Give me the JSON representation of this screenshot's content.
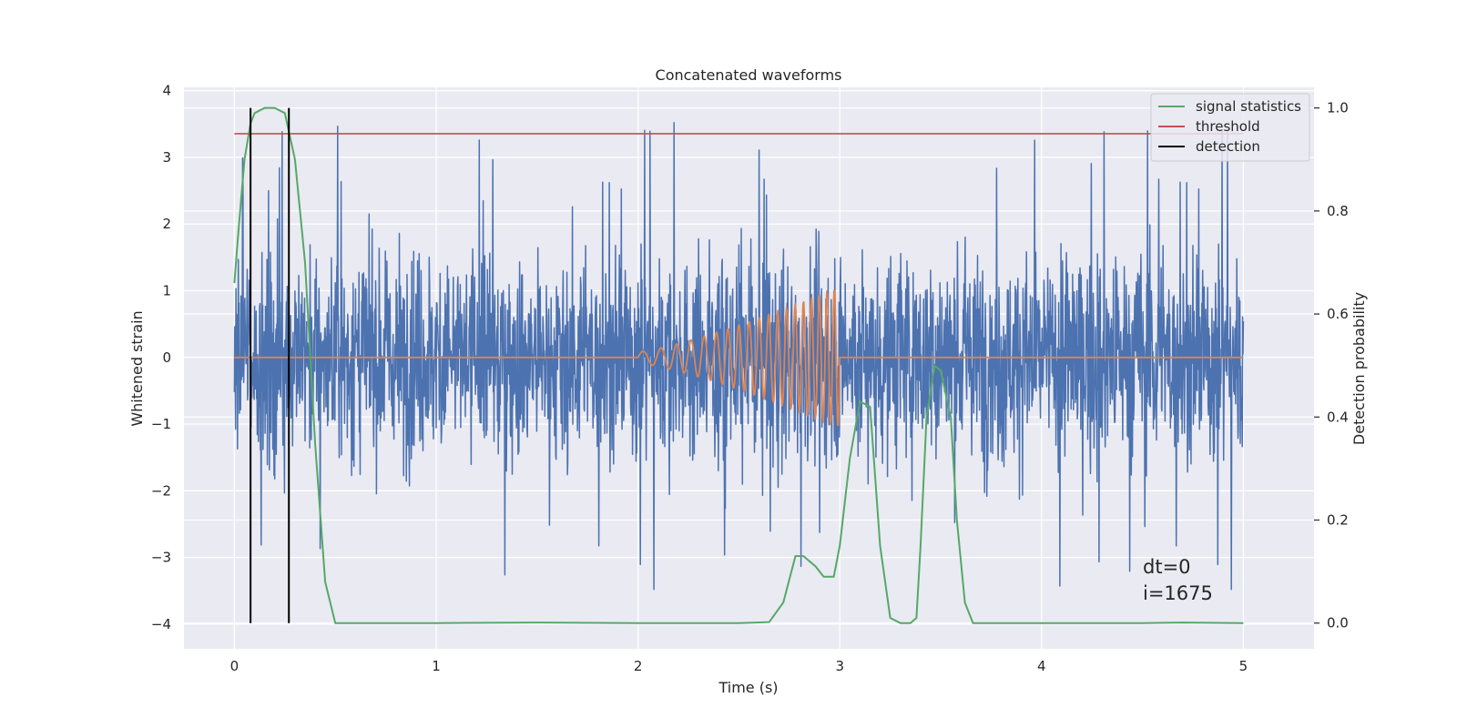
{
  "chart_data": {
    "type": "line",
    "title": "Concatenated waveforms",
    "xlabel": "Time (s)",
    "ylabel": "Whitened strain",
    "ylabel_right": "Detection probability",
    "xlim": [
      -0.25,
      5.35
    ],
    "ylim": [
      -4.37,
      4.05
    ],
    "ylim_right": [
      -0.05,
      1.04
    ],
    "x_ticks": [
      "0",
      "1",
      "2",
      "3",
      "4",
      "5"
    ],
    "x_tick_values": [
      0,
      1,
      2,
      3,
      4,
      5
    ],
    "y_ticks": [
      "4",
      "3",
      "2",
      "1",
      "0",
      "−1",
      "−2",
      "−3",
      "−4"
    ],
    "y_tick_values": [
      4,
      3,
      2,
      1,
      0,
      -1,
      -2,
      -3,
      -4
    ],
    "y_right_ticks": [
      "1.0",
      "0.8",
      "0.6",
      "0.4",
      "0.2",
      "0.0"
    ],
    "y_right_tick_values": [
      1.0,
      0.8,
      0.6,
      0.4,
      0.2,
      0.0
    ],
    "grid": true,
    "legend_position": "top-right",
    "series": [
      {
        "name": "signal statistics",
        "axis": "right",
        "color": "#55a868",
        "x": [
          0,
          0.02,
          0.05,
          0.08,
          0.1,
          0.15,
          0.2,
          0.25,
          0.3,
          0.35,
          0.4,
          0.45,
          0.5,
          0.55,
          0.6,
          1.0,
          1.5,
          2.0,
          2.5,
          2.65,
          2.72,
          2.78,
          2.82,
          2.88,
          2.92,
          2.97,
          3.0,
          3.05,
          3.1,
          3.15,
          3.2,
          3.25,
          3.3,
          3.35,
          3.38,
          3.4,
          3.43,
          3.47,
          3.5,
          3.55,
          3.58,
          3.62,
          3.66,
          3.72,
          4.0,
          4.5,
          4.7,
          5.0
        ],
        "y": [
          0.66,
          0.76,
          0.9,
          0.97,
          0.99,
          1.0,
          1.0,
          0.99,
          0.9,
          0.7,
          0.35,
          0.08,
          0.0,
          0.0,
          0.0,
          0.0,
          0.001,
          0.0,
          0.0,
          0.002,
          0.04,
          0.13,
          0.13,
          0.11,
          0.09,
          0.09,
          0.15,
          0.32,
          0.43,
          0.42,
          0.15,
          0.01,
          0.0,
          0.0,
          0.01,
          0.15,
          0.4,
          0.5,
          0.49,
          0.4,
          0.2,
          0.04,
          0.0,
          0.0,
          0.0,
          0.0,
          0.001,
          0.0
        ]
      },
      {
        "name": "threshold",
        "axis": "right",
        "color": "#c44e52",
        "x": [
          0,
          5
        ],
        "y": [
          0.95,
          0.95
        ]
      },
      {
        "name": "detection",
        "axis": "right",
        "color": "#000000",
        "x": [
          0.08,
          0.27
        ],
        "y": [
          1.0,
          1.0
        ]
      },
      {
        "name": "",
        "axis": "left",
        "color": "#4c72b0",
        "description_values": "whitened noise samples between 0 and 5 s",
        "x_range": [
          0,
          5
        ],
        "amplitude_typical": 1.3,
        "amplitude_peak": 3.6
      },
      {
        "name": "",
        "axis": "left",
        "color": "#dd8452",
        "x_range": [
          0,
          5
        ],
        "chirp_start": 2.0,
        "chirp_end": 3.0,
        "chirp_peak_amplitude": 1.08
      }
    ],
    "annotations": [
      "dt=0",
      "i=1675"
    ]
  },
  "legend": {
    "items": [
      {
        "label": "signal statistics",
        "color": "#55a868"
      },
      {
        "label": "threshold",
        "color": "#c44e52"
      },
      {
        "label": "detection",
        "color": "#000000"
      }
    ]
  }
}
